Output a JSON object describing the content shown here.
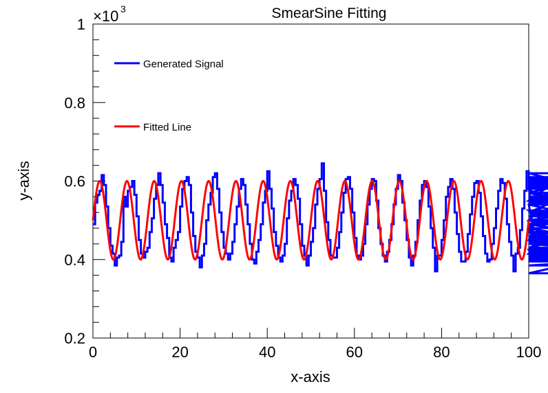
{
  "chart_data": {
    "type": "line",
    "title": "SmearSine Fitting",
    "xlabel": "x-axis",
    "ylabel": "y-axis",
    "xlim": [
      0,
      100
    ],
    "ylim": [
      0.2,
      1.0
    ],
    "y_multiplier_label": "×10",
    "y_multiplier_exponent": "3",
    "x_ticks": [
      "0",
      "20",
      "40",
      "60",
      "80",
      "100"
    ],
    "x_tick_values": [
      0,
      20,
      40,
      60,
      80,
      100
    ],
    "y_ticks": [
      "0.2",
      "0.4",
      "0.6",
      "0.8",
      "1"
    ],
    "y_tick_values": [
      0.2,
      0.4,
      0.6,
      0.8,
      1.0
    ],
    "legend_position": "top-left",
    "series": [
      {
        "name": "Generated Signal",
        "color": "#0000ff",
        "style": "step",
        "bin_width": 0.5,
        "values": [
          0.49,
          0.545,
          0.565,
          0.575,
          0.615,
          0.59,
          0.535,
          0.48,
          0.435,
          0.415,
          0.385,
          0.405,
          0.41,
          0.445,
          0.56,
          0.535,
          0.575,
          0.585,
          0.6,
          0.565,
          0.51,
          0.45,
          0.415,
          0.405,
          0.42,
          0.43,
          0.47,
          0.505,
          0.555,
          0.59,
          0.62,
          0.59,
          0.545,
          0.49,
          0.455,
          0.405,
          0.395,
          0.43,
          0.45,
          0.47,
          0.535,
          0.58,
          0.6,
          0.61,
          0.59,
          0.52,
          0.46,
          0.42,
          0.405,
          0.38,
          0.41,
          0.44,
          0.5,
          0.54,
          0.57,
          0.61,
          0.62,
          0.58,
          0.52,
          0.47,
          0.43,
          0.415,
          0.4,
          0.415,
          0.445,
          0.49,
          0.535,
          0.58,
          0.605,
          0.59,
          0.54,
          0.49,
          0.44,
          0.4,
          0.39,
          0.42,
          0.45,
          0.49,
          0.545,
          0.575,
          0.625,
          0.58,
          0.53,
          0.47,
          0.435,
          0.405,
          0.395,
          0.41,
          0.44,
          0.505,
          0.55,
          0.575,
          0.605,
          0.59,
          0.555,
          0.49,
          0.435,
          0.41,
          0.385,
          0.41,
          0.445,
          0.48,
          0.54,
          0.58,
          0.605,
          0.645,
          0.575,
          0.495,
          0.45,
          0.41,
          0.405,
          0.405,
          0.43,
          0.47,
          0.52,
          0.57,
          0.605,
          0.61,
          0.58,
          0.52,
          0.455,
          0.41,
          0.4,
          0.41,
          0.44,
          0.49,
          0.54,
          0.58,
          0.605,
          0.6,
          0.55,
          0.48,
          0.44,
          0.41,
          0.395,
          0.42,
          0.45,
          0.49,
          0.54,
          0.58,
          0.615,
          0.6,
          0.545,
          0.5,
          0.45,
          0.405,
          0.385,
          0.41,
          0.445,
          0.5,
          0.55,
          0.59,
          0.6,
          0.585,
          0.535,
          0.48,
          0.43,
          0.37,
          0.41,
          0.41,
          0.45,
          0.5,
          0.56,
          0.585,
          0.605,
          0.58,
          0.52,
          0.465,
          0.42,
          0.395,
          0.395,
          0.42,
          0.465,
          0.515,
          0.56,
          0.595,
          0.6,
          0.57,
          0.51,
          0.46,
          0.415,
          0.395,
          0.4,
          0.44,
          0.48,
          0.53,
          0.575,
          0.605,
          0.595,
          0.555,
          0.49,
          0.445,
          0.41,
          0.37,
          0.415,
          0.43,
          0.475,
          0.53,
          0.575,
          0.625,
          0.585,
          0.54,
          0.485,
          0.425,
          0.395,
          0.4,
          0.415,
          0.45,
          0.5,
          0.55,
          0.59,
          0.61,
          0.58,
          0.525,
          0.47,
          0.425,
          0.4,
          0.405,
          0.43,
          0.47,
          0.52,
          0.57,
          0.6,
          0.605,
          0.56,
          0.5,
          0.445,
          0.365,
          0.4,
          0.415,
          0.455,
          0.51,
          0.555,
          0.59,
          0.61,
          0.57,
          0.52,
          0.46,
          0.42,
          0.395,
          0.405,
          0.44,
          0.49,
          0.54,
          0.585,
          0.605,
          0.59,
          0.54,
          0.48,
          0.43,
          0.4,
          0.395,
          0.42,
          0.46,
          0.51,
          0.56,
          0.595,
          0.6,
          0.56,
          0.5,
          0.45,
          0.405,
          0.395,
          0.41,
          0.45,
          0.5,
          0.55,
          0.59,
          0.62,
          0.62,
          0.52,
          0.47,
          0.385,
          0.41,
          0.42,
          0.46,
          0.51,
          0.56,
          0.59,
          0.605,
          0.56,
          0.5,
          0.44,
          0.4,
          0.395,
          0.41,
          0.45,
          0.49,
          0.545,
          0.585,
          0.6,
          0.57,
          0.49,
          0.41,
          0.395,
          0.42
        ]
      },
      {
        "name": "Fitted Line",
        "color": "#ff0000",
        "style": "smooth",
        "amplitude": 0.1,
        "offset": 0.5,
        "period": 6.25,
        "phase": 0.0,
        "samples": 1000
      }
    ]
  }
}
